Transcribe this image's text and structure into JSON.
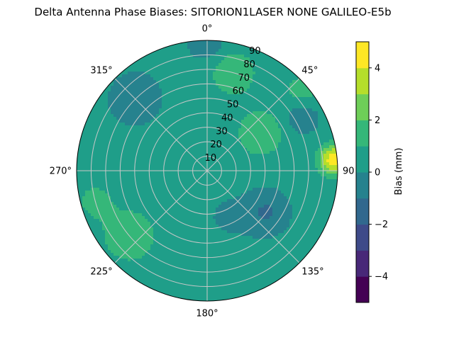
{
  "chart_data": {
    "type": "heatmap",
    "subtype": "polar-contour",
    "title": "Delta Antenna Phase Biases: SITORION1LASER  NONE GALILEO-E5b",
    "colorbar_label": "Bias (mm)",
    "colorbar_range": [
      -5,
      5
    ],
    "colorbar_levels": [
      -5,
      -4,
      -3,
      -2,
      -1,
      0,
      1,
      2,
      3,
      4,
      5
    ],
    "colorbar_ticks": [
      -4,
      -2,
      0,
      2,
      4
    ],
    "level_colors": [
      "#440154",
      "#482878",
      "#3e4a89",
      "#31688e",
      "#26828e",
      "#1f9e89",
      "#35b779",
      "#6ece58",
      "#b5de2b",
      "#fde725"
    ],
    "angular_ticks": [
      "0°",
      "45°",
      "90",
      "135°",
      "180°",
      "225°",
      "270°",
      "315°"
    ],
    "angular_tick_values": [
      0,
      45,
      90,
      135,
      180,
      225,
      270,
      315
    ],
    "radial_ticks": [
      "10",
      "20",
      "30",
      "40",
      "50",
      "60",
      "70",
      "80",
      "90"
    ],
    "radial_tick_values": [
      10,
      20,
      30,
      40,
      50,
      60,
      70,
      80,
      90
    ],
    "radial_range": [
      0,
      90
    ],
    "theta_zero": "top",
    "theta_direction": "clockwise",
    "grid": true,
    "field_components": [
      {
        "azimuth": 0,
        "zenith": 0,
        "bias": 0.3,
        "width": 90
      },
      {
        "azimuth": 55,
        "zenith": 45,
        "bias": 1.5,
        "width": 12
      },
      {
        "azimuth": 15,
        "zenith": 70,
        "bias": 1.4,
        "width": 12
      },
      {
        "azimuth": 85,
        "zenith": 88,
        "bias": 4.6,
        "width": 7
      },
      {
        "azimuth": 50,
        "zenith": 85,
        "bias": 1.2,
        "width": 9
      },
      {
        "azimuth": 230,
        "zenith": 70,
        "bias": 1.6,
        "width": 13
      },
      {
        "azimuth": 255,
        "zenith": 80,
        "bias": 1.0,
        "width": 10
      },
      {
        "azimuth": 310,
        "zenith": 30,
        "bias": 0.7,
        "width": 9
      },
      {
        "azimuth": 315,
        "zenith": 70,
        "bias": -1.3,
        "width": 11
      },
      {
        "azimuth": 125,
        "zenith": 50,
        "bias": -1.4,
        "width": 10
      },
      {
        "azimuth": 60,
        "zenith": 75,
        "bias": -1.2,
        "width": 8
      },
      {
        "azimuth": 155,
        "zenith": 35,
        "bias": -0.4,
        "width": 13
      },
      {
        "azimuth": 0,
        "zenith": 88,
        "bias": -1.3,
        "width": 8
      }
    ]
  }
}
